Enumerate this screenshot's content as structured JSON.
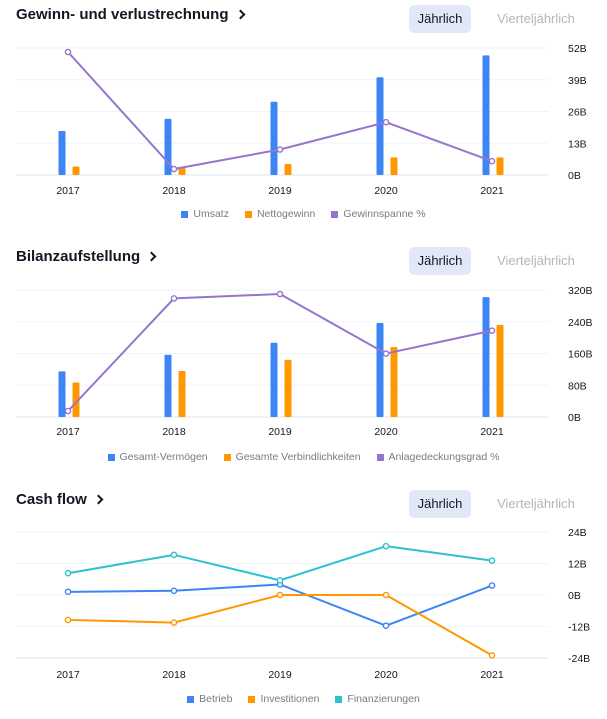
{
  "colors": {
    "blue": "#3d85f5",
    "orange": "#ff9800",
    "purple": "#9575cd",
    "cyan": "#2ec1cf",
    "grid": "#f0f3fa",
    "axis_text": "#131722"
  },
  "sections": {
    "income": {
      "title": "Gewinn- und verlustrechnung",
      "toggle_active": "Jährlich",
      "toggle_inactive": "Vierteljährlich",
      "legend": [
        "Umsatz",
        "Nettogewinn",
        "Gewinnspanne %"
      ]
    },
    "balance": {
      "title": "Bilanzaufstellung",
      "toggle_active": "Jährlich",
      "toggle_inactive": "Vierteljährlich",
      "legend": [
        "Gesamt-Vermögen",
        "Gesamte Verbindlichkeiten",
        "Anlagedeckungsgrad %"
      ]
    },
    "cash": {
      "title": "Cash flow",
      "toggle_active": "Jährlich",
      "toggle_inactive": "Vierteljährlich",
      "legend": [
        "Betrieb",
        "Investitionen",
        "Finanzierungen"
      ]
    }
  },
  "chart_data": [
    {
      "type": "bar",
      "categories": [
        "2017",
        "2018",
        "2019",
        "2020",
        "2021"
      ],
      "y_ticks": [
        "52B",
        "39B",
        "26B",
        "13B",
        "0B"
      ],
      "ylim": [
        0,
        52
      ],
      "series": [
        {
          "name": "Umsatz",
          "values": [
            18,
            23,
            30,
            40,
            49
          ],
          "color": "blue"
        },
        {
          "name": "Nettogewinn",
          "values": [
            3.5,
            3.2,
            4.5,
            7.2,
            7.2
          ],
          "color": "orange"
        }
      ],
      "line": {
        "name": "Gewinnspanne %",
        "values": [
          49,
          19,
          24,
          31,
          21
        ],
        "color": "purple",
        "unit": "relative"
      }
    },
    {
      "type": "bar",
      "categories": [
        "2017",
        "2018",
        "2019",
        "2020",
        "2021"
      ],
      "y_ticks": [
        "320B",
        "240B",
        "160B",
        "80B",
        "0B"
      ],
      "ylim": [
        0,
        320
      ],
      "series": [
        {
          "name": "Gesamt-Vermögen",
          "values": [
            115,
            157,
            187,
            237,
            302
          ],
          "color": "blue"
        },
        {
          "name": "Gesamte Verbindlichkeiten",
          "values": [
            87,
            116,
            144,
            176,
            232
          ],
          "color": "orange"
        }
      ],
      "line": {
        "name": "Anlagedeckungsgrad %",
        "values": [
          45,
          300,
          310,
          175,
          227
        ],
        "color": "purple",
        "unit": "relative"
      }
    },
    {
      "type": "line",
      "categories": [
        "2017",
        "2018",
        "2019",
        "2020",
        "2021"
      ],
      "y_ticks": [
        "24B",
        "12B",
        "0B",
        "-12B",
        "-24B"
      ],
      "ylim": [
        -24,
        24
      ],
      "series": [
        {
          "name": "Betrieb",
          "values": [
            1.2,
            1.6,
            4.0,
            -11.7,
            3.6
          ],
          "color": "blue"
        },
        {
          "name": "Investitionen",
          "values": [
            -9.5,
            -10.5,
            0,
            0,
            -23
          ],
          "color": "orange"
        },
        {
          "name": "Finanzierungen",
          "values": [
            8.3,
            15.3,
            5.6,
            18.6,
            13.1
          ],
          "color": "cyan"
        }
      ]
    }
  ]
}
